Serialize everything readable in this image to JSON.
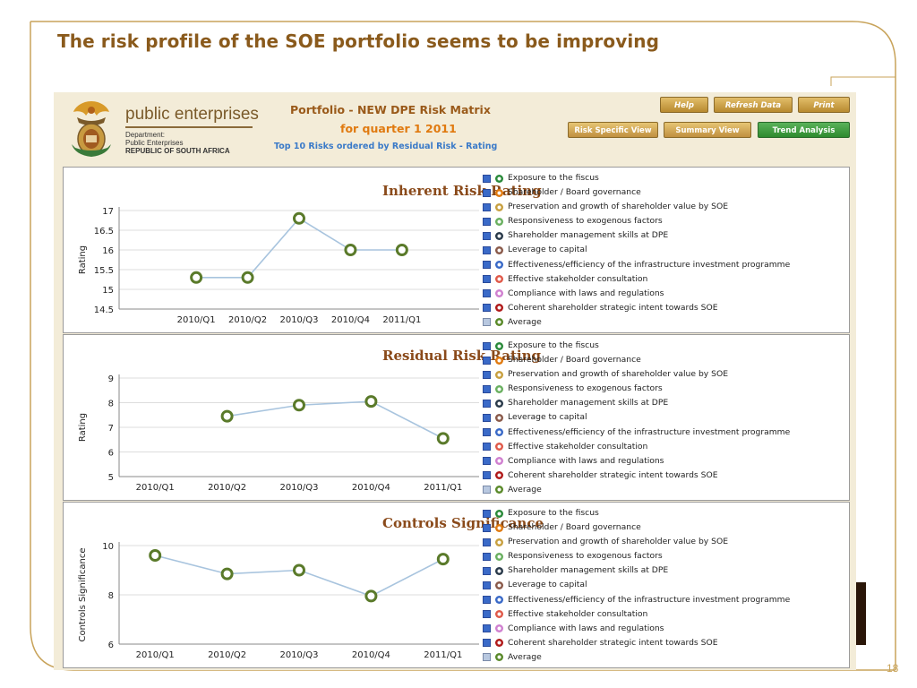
{
  "slide": {
    "title": "The risk profile of the SOE portfolio seems to be improving",
    "page_number": "18"
  },
  "colors": {
    "title": "#8a5a1c",
    "frame": "#c8a35a",
    "line": "#a8c4de",
    "marker": "#5a7a2a",
    "checkbox": "#3a6ac8"
  },
  "app": {
    "brand": {
      "name": "public enterprises",
      "dept_line1": "Department:",
      "dept_line2": "Public Enterprises",
      "dept_line3": "REPUBLIC OF SOUTH AFRICA",
      "crest_icon": "coat-of-arms-icon"
    },
    "header": {
      "title": "Portfolio - NEW DPE Risk Matrix",
      "quarter": "for quarter 1 2011",
      "subtitle": "Top 10 Risks ordered by Residual Risk - Rating"
    },
    "buttons": {
      "help": "Help",
      "refresh": "Refresh Data",
      "print": "Print",
      "risk_specific": "Risk Specific View",
      "summary": "Summary View",
      "trend": "Trend Analysis"
    }
  },
  "legend": [
    {
      "label": "Exposure to the fiscus",
      "color": "#2a8a3a",
      "checked": false
    },
    {
      "label": "Shareholder / Board governance",
      "color": "#e07a10",
      "checked": false
    },
    {
      "label": "Preservation and growth of shareholder value by SOE",
      "color": "#c8a040",
      "checked": false
    },
    {
      "label": "Responsiveness to exogenous factors",
      "color": "#6ab060",
      "checked": false
    },
    {
      "label": "Shareholder management skills at DPE",
      "color": "#2a3a4a",
      "checked": false
    },
    {
      "label": "Leverage to capital",
      "color": "#8a5a4a",
      "checked": false
    },
    {
      "label": "Effectiveness/efficiency of the infrastructure investment programme",
      "color": "#3a6ac8",
      "checked": false
    },
    {
      "label": "Effective stakeholder consultation",
      "color": "#e05a4a",
      "checked": false
    },
    {
      "label": "Compliance with laws and regulations",
      "color": "#d080d0",
      "checked": false
    },
    {
      "label": "Coherent shareholder strategic intent towards SOE",
      "color": "#b01a1a",
      "checked": false
    },
    {
      "label": "Average",
      "color": "#5a8a2a",
      "checked": true
    }
  ],
  "chart_data": [
    {
      "type": "line",
      "title": "Inherent Risk Rating",
      "ylabel": "Rating",
      "categories": [
        "2010/Q1",
        "2010/Q2",
        "2010/Q3",
        "2010/Q4",
        "2011/Q1"
      ],
      "x_slots": [
        "",
        "2010/Q1",
        "2010/Q2",
        "2010/Q3",
        "2010/Q4",
        "2011/Q1",
        ""
      ],
      "series": [
        {
          "name": "Average",
          "values": [
            15.3,
            15.3,
            16.8,
            16.0,
            16.0
          ]
        }
      ],
      "ylim": [
        14.5,
        17
      ],
      "yticks": [
        14.5,
        15,
        15.5,
        16,
        16.5,
        17
      ],
      "grid": true
    },
    {
      "type": "line",
      "title": "Residual Risk Rating",
      "ylabel": "Rating",
      "categories": [
        "2010/Q1",
        "2010/Q2",
        "2010/Q3",
        "2010/Q4",
        "2011/Q1"
      ],
      "x_slots": [
        "2010/Q1",
        "2010/Q2",
        "2010/Q3",
        "2010/Q4",
        "2011/Q1"
      ],
      "series": [
        {
          "name": "Average",
          "values": [
            null,
            7.45,
            7.9,
            8.05,
            6.55
          ]
        }
      ],
      "ylim": [
        5,
        9
      ],
      "yticks": [
        5,
        6,
        7,
        8,
        9
      ],
      "grid": true
    },
    {
      "type": "line",
      "title": "Controls Significance",
      "ylabel": "Controls Significance",
      "categories": [
        "2010/Q1",
        "2010/Q2",
        "2010/Q3",
        "2010/Q4",
        "2011/Q1"
      ],
      "x_slots": [
        "2010/Q1",
        "2010/Q2",
        "2010/Q3",
        "2010/Q4",
        "2011/Q1"
      ],
      "series": [
        {
          "name": "Average",
          "values": [
            9.6,
            8.85,
            9.0,
            7.95,
            9.45
          ]
        }
      ],
      "ylim": [
        6,
        10
      ],
      "yticks": [
        6,
        8,
        10
      ],
      "grid": true
    }
  ]
}
